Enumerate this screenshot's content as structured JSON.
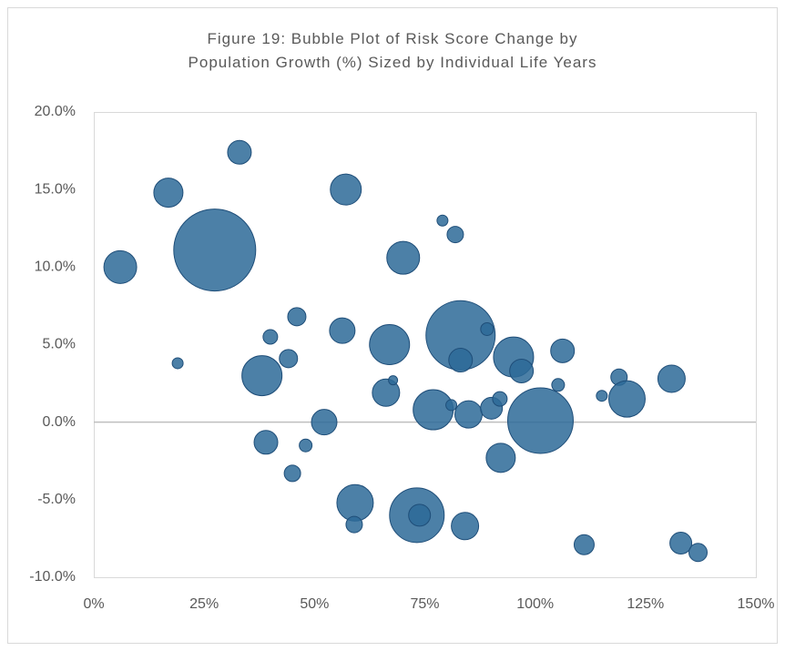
{
  "chart_data": {
    "type": "bubble",
    "title": "Figure 19: Bubble Plot of Risk Score Change by Population Growth (%) Sized by Individual Life Years",
    "series": [
      {
        "color": "#2d6a98",
        "x": [
          6.0,
          16.9,
          19.0,
          27.4,
          33.0,
          38.1,
          39.0,
          40.0,
          44.1,
          45.0,
          46.0,
          48.0,
          52.2,
          57.1,
          59.2,
          59.0,
          56.3,
          66.2,
          67.0,
          67.8,
          70.1,
          73.2,
          73.8,
          76.9,
          79.0,
          81.0,
          81.9,
          83.1,
          83.1,
          84.9,
          84.1,
          89.1,
          90.1,
          92.0,
          92.2,
          95.1,
          96.9,
          101.2,
          105.2,
          106.2,
          111.1,
          115.1,
          119.0,
          120.8,
          130.9,
          133.0,
          136.9
        ],
        "values": [
          10.0,
          14.8,
          3.8,
          11.1,
          17.4,
          3.0,
          -1.3,
          5.5,
          4.1,
          -3.3,
          6.8,
          -1.5,
          0.0,
          15.0,
          -5.2,
          -6.6,
          5.9,
          1.9,
          5.0,
          2.7,
          10.6,
          -6.0,
          -6.0,
          0.8,
          13.0,
          1.1,
          12.1,
          5.6,
          4.0,
          0.5,
          -6.7,
          6.0,
          0.9,
          1.5,
          -2.3,
          4.2,
          3.3,
          0.1,
          2.4,
          4.6,
          -7.9,
          1.7,
          2.9,
          1.5,
          2.8,
          -7.8,
          -8.4
        ],
        "sizes": [
          324,
          256,
          36,
          2025,
          169,
          484,
          169,
          64,
          100,
          81,
          100,
          49,
          196,
          289,
          400,
          81,
          196,
          225,
          484,
          25,
          324,
          900,
          144,
          484,
          36,
          36,
          81,
          1444,
          169,
          225,
          225,
          49,
          144,
          64,
          256,
          484,
          169,
          1296,
          49,
          169,
          121,
          36,
          81,
          400,
          225,
          144,
          100
        ]
      }
    ],
    "xlim": [
      0,
      150
    ],
    "xticks": [
      {
        "value": 0,
        "label": "0%"
      },
      {
        "value": 25,
        "label": "25%"
      },
      {
        "value": 50,
        "label": "50%"
      },
      {
        "value": 75,
        "label": "75%"
      },
      {
        "value": 100,
        "label": "100%"
      },
      {
        "value": 125,
        "label": "125%"
      },
      {
        "value": 150,
        "label": "150%"
      }
    ],
    "ylim": [
      -10,
      20
    ],
    "yticks": [
      {
        "value": -10,
        "label": "-10.0%"
      },
      {
        "value": -5,
        "label": "-5.0%"
      },
      {
        "value": 0,
        "label": "0.0%"
      },
      {
        "value": 5,
        "label": "5.0%"
      },
      {
        "value": 10,
        "label": "10.0%"
      },
      {
        "value": 15,
        "label": "15.0%"
      },
      {
        "value": 20,
        "label": "20.0%"
      }
    ]
  }
}
